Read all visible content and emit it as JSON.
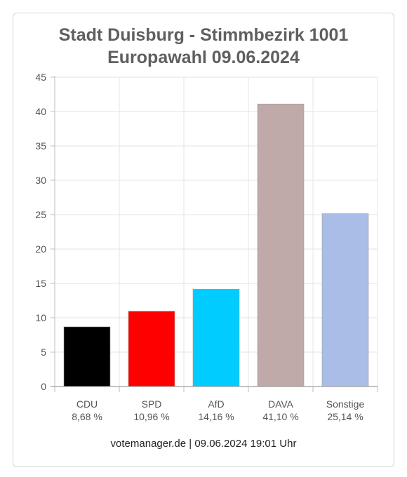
{
  "title_line1": "Stadt Duisburg - Stimmbezirk 1001",
  "title_line2": "Europawahl 09.06.2024",
  "footer": "votemanager.de | 09.06.2024 19:01 Uhr",
  "chart_data": {
    "type": "bar",
    "title": "Stadt Duisburg - Stimmbezirk 1001 Europawahl 09.06.2024",
    "xlabel": "",
    "ylabel": "",
    "ylim": [
      0,
      45
    ],
    "yticks": [
      0,
      5,
      10,
      15,
      20,
      25,
      30,
      35,
      40,
      45
    ],
    "grid": true,
    "categories": [
      "CDU",
      "SPD",
      "AfD",
      "DAVA",
      "Sonstige"
    ],
    "percent_labels": [
      "8,68 %",
      "10,96 %",
      "14,16 %",
      "41,10 %",
      "25,14 %"
    ],
    "values": [
      8.68,
      10.96,
      14.16,
      41.1,
      25.14
    ],
    "colors": [
      "#000000",
      "#ff0000",
      "#00ccff",
      "#bfa9a9",
      "#a9bde6"
    ]
  }
}
